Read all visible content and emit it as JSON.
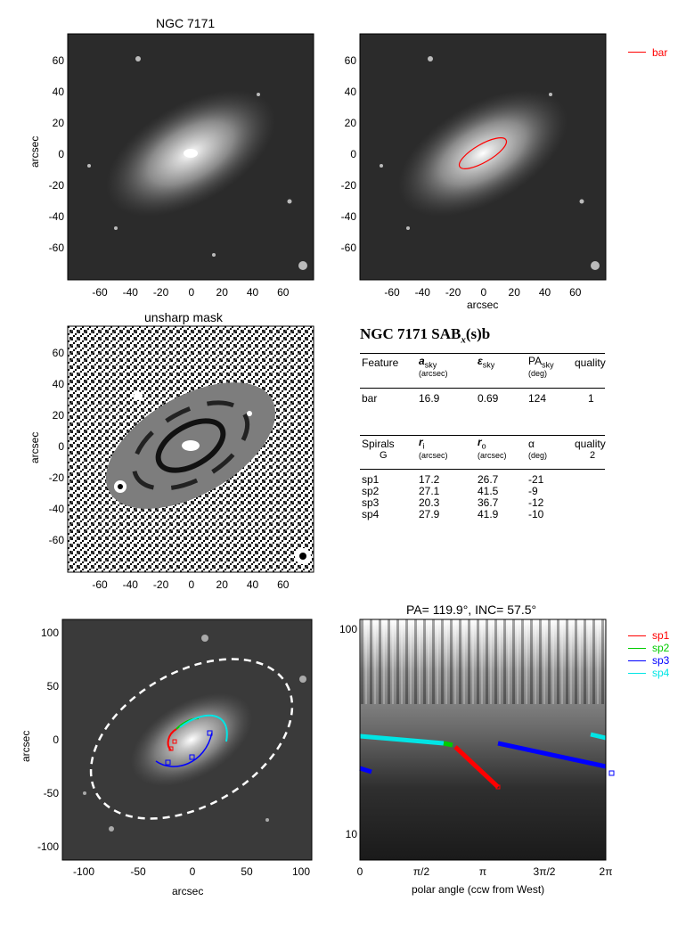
{
  "panels": {
    "p1_title": "NGC 7171",
    "p1_ylabel": "arcsec",
    "p2_xlabel": "arcsec",
    "p3_title": "unsharp mask",
    "p3_ylabel": "arcsec",
    "p5_ylabel": "arcsec",
    "p5_xlabel": "arcsec",
    "p6_title": "PA= 119.9°, INC=  57.5°",
    "p6_xlabel": "polar angle (ccw from West)"
  },
  "axes": {
    "img_xticks": [
      "-60",
      "-40",
      "-20",
      "0",
      "20",
      "40",
      "60"
    ],
    "img_yticks": [
      "60",
      "40",
      "20",
      "0",
      "-20",
      "-40",
      "-60"
    ],
    "p5_xticks": [
      "-100",
      "-50",
      "0",
      "50",
      "100"
    ],
    "p5_yticks": [
      "100",
      "50",
      "0",
      "-50",
      "-100"
    ],
    "p6_xticks": [
      "0",
      "π/2",
      "π",
      "3π/2",
      "2π"
    ],
    "p6_yticks": [
      "100",
      "10"
    ]
  },
  "legend_bar": {
    "label": "bar",
    "color": "#ff0000"
  },
  "legend_spirals": [
    {
      "label": "sp1",
      "color": "#ff0000"
    },
    {
      "label": "sp2",
      "color": "#00cc00"
    },
    {
      "label": "sp3",
      "color": "#0000ff"
    },
    {
      "label": "sp4",
      "color": "#00e5e5"
    }
  ],
  "table": {
    "heading": "NGC 7171  SAB",
    "heading_sub": "x",
    "heading_tail": "(s)b",
    "bar_header": {
      "c1": "Feature",
      "c2": "a",
      "c2_sub": "sky",
      "c2_unit": "(arcsec)",
      "c3": "ε",
      "c3_sub": "sky",
      "c4": "PA",
      "c4_sub": "sky",
      "c4_unit": "(deg)",
      "c5": "quality"
    },
    "bar_row": {
      "feature": "bar",
      "a": "16.9",
      "e": "0.69",
      "pa": "124",
      "q": "1"
    },
    "sp_header": {
      "c1": "Spirals",
      "c1b": "G",
      "c2": "r",
      "c2_sub": "i",
      "c2_unit": "(arcsec)",
      "c3": "r",
      "c3_sub": "o",
      "c3_unit": "(arcsec)",
      "c4": "α",
      "c4_unit": "(deg)",
      "c5": "quality",
      "c5b": "2"
    },
    "sp_rows": [
      {
        "name": "sp1",
        "ri": "17.2",
        "ro": "26.7",
        "alpha": "-21"
      },
      {
        "name": "sp2",
        "ri": "27.1",
        "ro": "41.5",
        "alpha": "-9"
      },
      {
        "name": "sp3",
        "ri": "20.3",
        "ro": "36.7",
        "alpha": "-12"
      },
      {
        "name": "sp4",
        "ri": "27.9",
        "ro": "41.9",
        "alpha": "-10"
      }
    ]
  }
}
